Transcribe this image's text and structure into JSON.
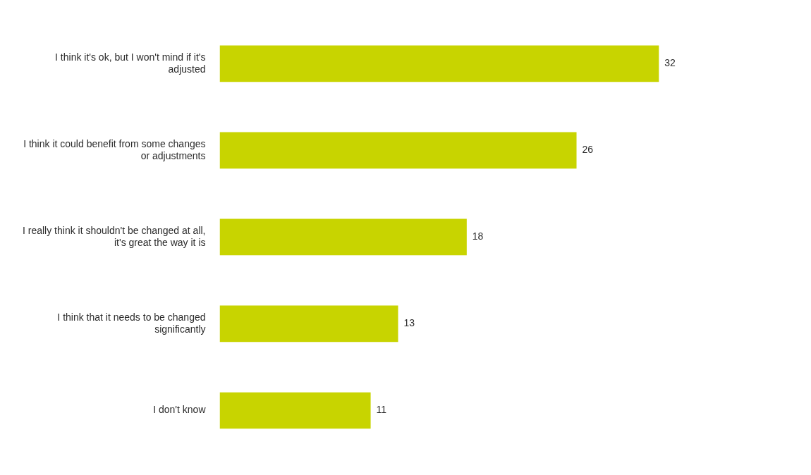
{
  "chart_data": {
    "type": "bar",
    "orientation": "horizontal",
    "categories": [
      "I don't know",
      "I think that it needs to be changed\nsignificantly",
      "I really think it shouldn't be changed at all,\nit's great the way it is",
      "I think it could benefit from some changes\nor adjustments",
      "I think it's ok, but I won't mind if it's\nadjusted"
    ],
    "values": [
      11,
      13,
      18,
      26,
      32
    ],
    "color": "#c8d400",
    "xlim": [
      0,
      40
    ],
    "grid": false,
    "data_labels": true,
    "tick_labels": "y"
  }
}
